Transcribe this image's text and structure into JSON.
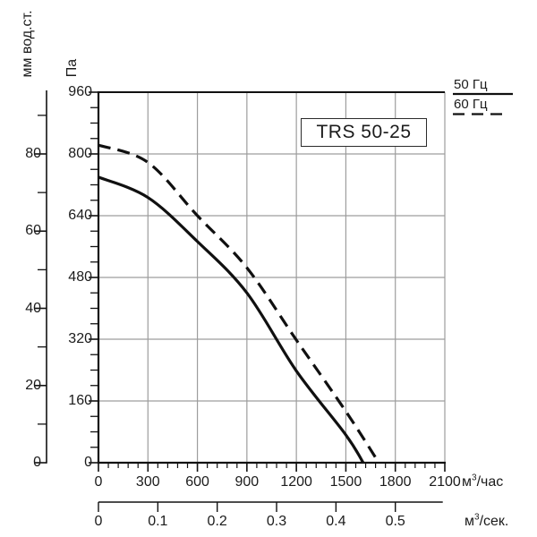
{
  "chart_data": {
    "type": "line",
    "title": "TRS 50-25",
    "grid": true,
    "legend_position": "top-right",
    "x_axis": {
      "unit_base": "м",
      "unit_sup": "3",
      "unit_rest": "/час",
      "ticks": [
        0,
        300,
        600,
        900,
        1200,
        1500,
        1800,
        2100
      ],
      "minor_step": 60,
      "range": [
        0,
        2100
      ]
    },
    "x_axis_secondary": {
      "unit_base": "м",
      "unit_sup": "3",
      "unit_rest": "/сек.",
      "ticks": [
        0,
        0.1,
        0.2,
        0.3,
        0.4,
        0.5
      ],
      "hours_per_unit": 3600
    },
    "y_axis_pa": {
      "label": "Па",
      "ticks": [
        0,
        160,
        320,
        480,
        640,
        800,
        960
      ],
      "minor_step": 40,
      "range": [
        0,
        960
      ]
    },
    "y_axis_mm": {
      "label": "мм вод.ст.",
      "ticks": [
        0,
        20,
        40,
        60,
        80
      ],
      "minor_step": 10,
      "pa_per_unit": 10
    },
    "series": [
      {
        "name": "50 Гц",
        "line_style": "solid",
        "points": [
          [
            0,
            740
          ],
          [
            300,
            687
          ],
          [
            600,
            573
          ],
          [
            900,
            440
          ],
          [
            1200,
            238
          ],
          [
            1500,
            72
          ],
          [
            1605,
            0
          ]
        ]
      },
      {
        "name": "60 Гц",
        "line_style": "dashed",
        "points": [
          [
            0,
            823
          ],
          [
            300,
            778
          ],
          [
            600,
            640
          ],
          [
            900,
            505
          ],
          [
            1200,
            318
          ],
          [
            1500,
            133
          ],
          [
            1700,
            0
          ]
        ]
      }
    ]
  },
  "colors": {
    "line": "#101010",
    "grid": "#9d9d9d",
    "axis": "#111111",
    "text": "#1b1b1b"
  }
}
